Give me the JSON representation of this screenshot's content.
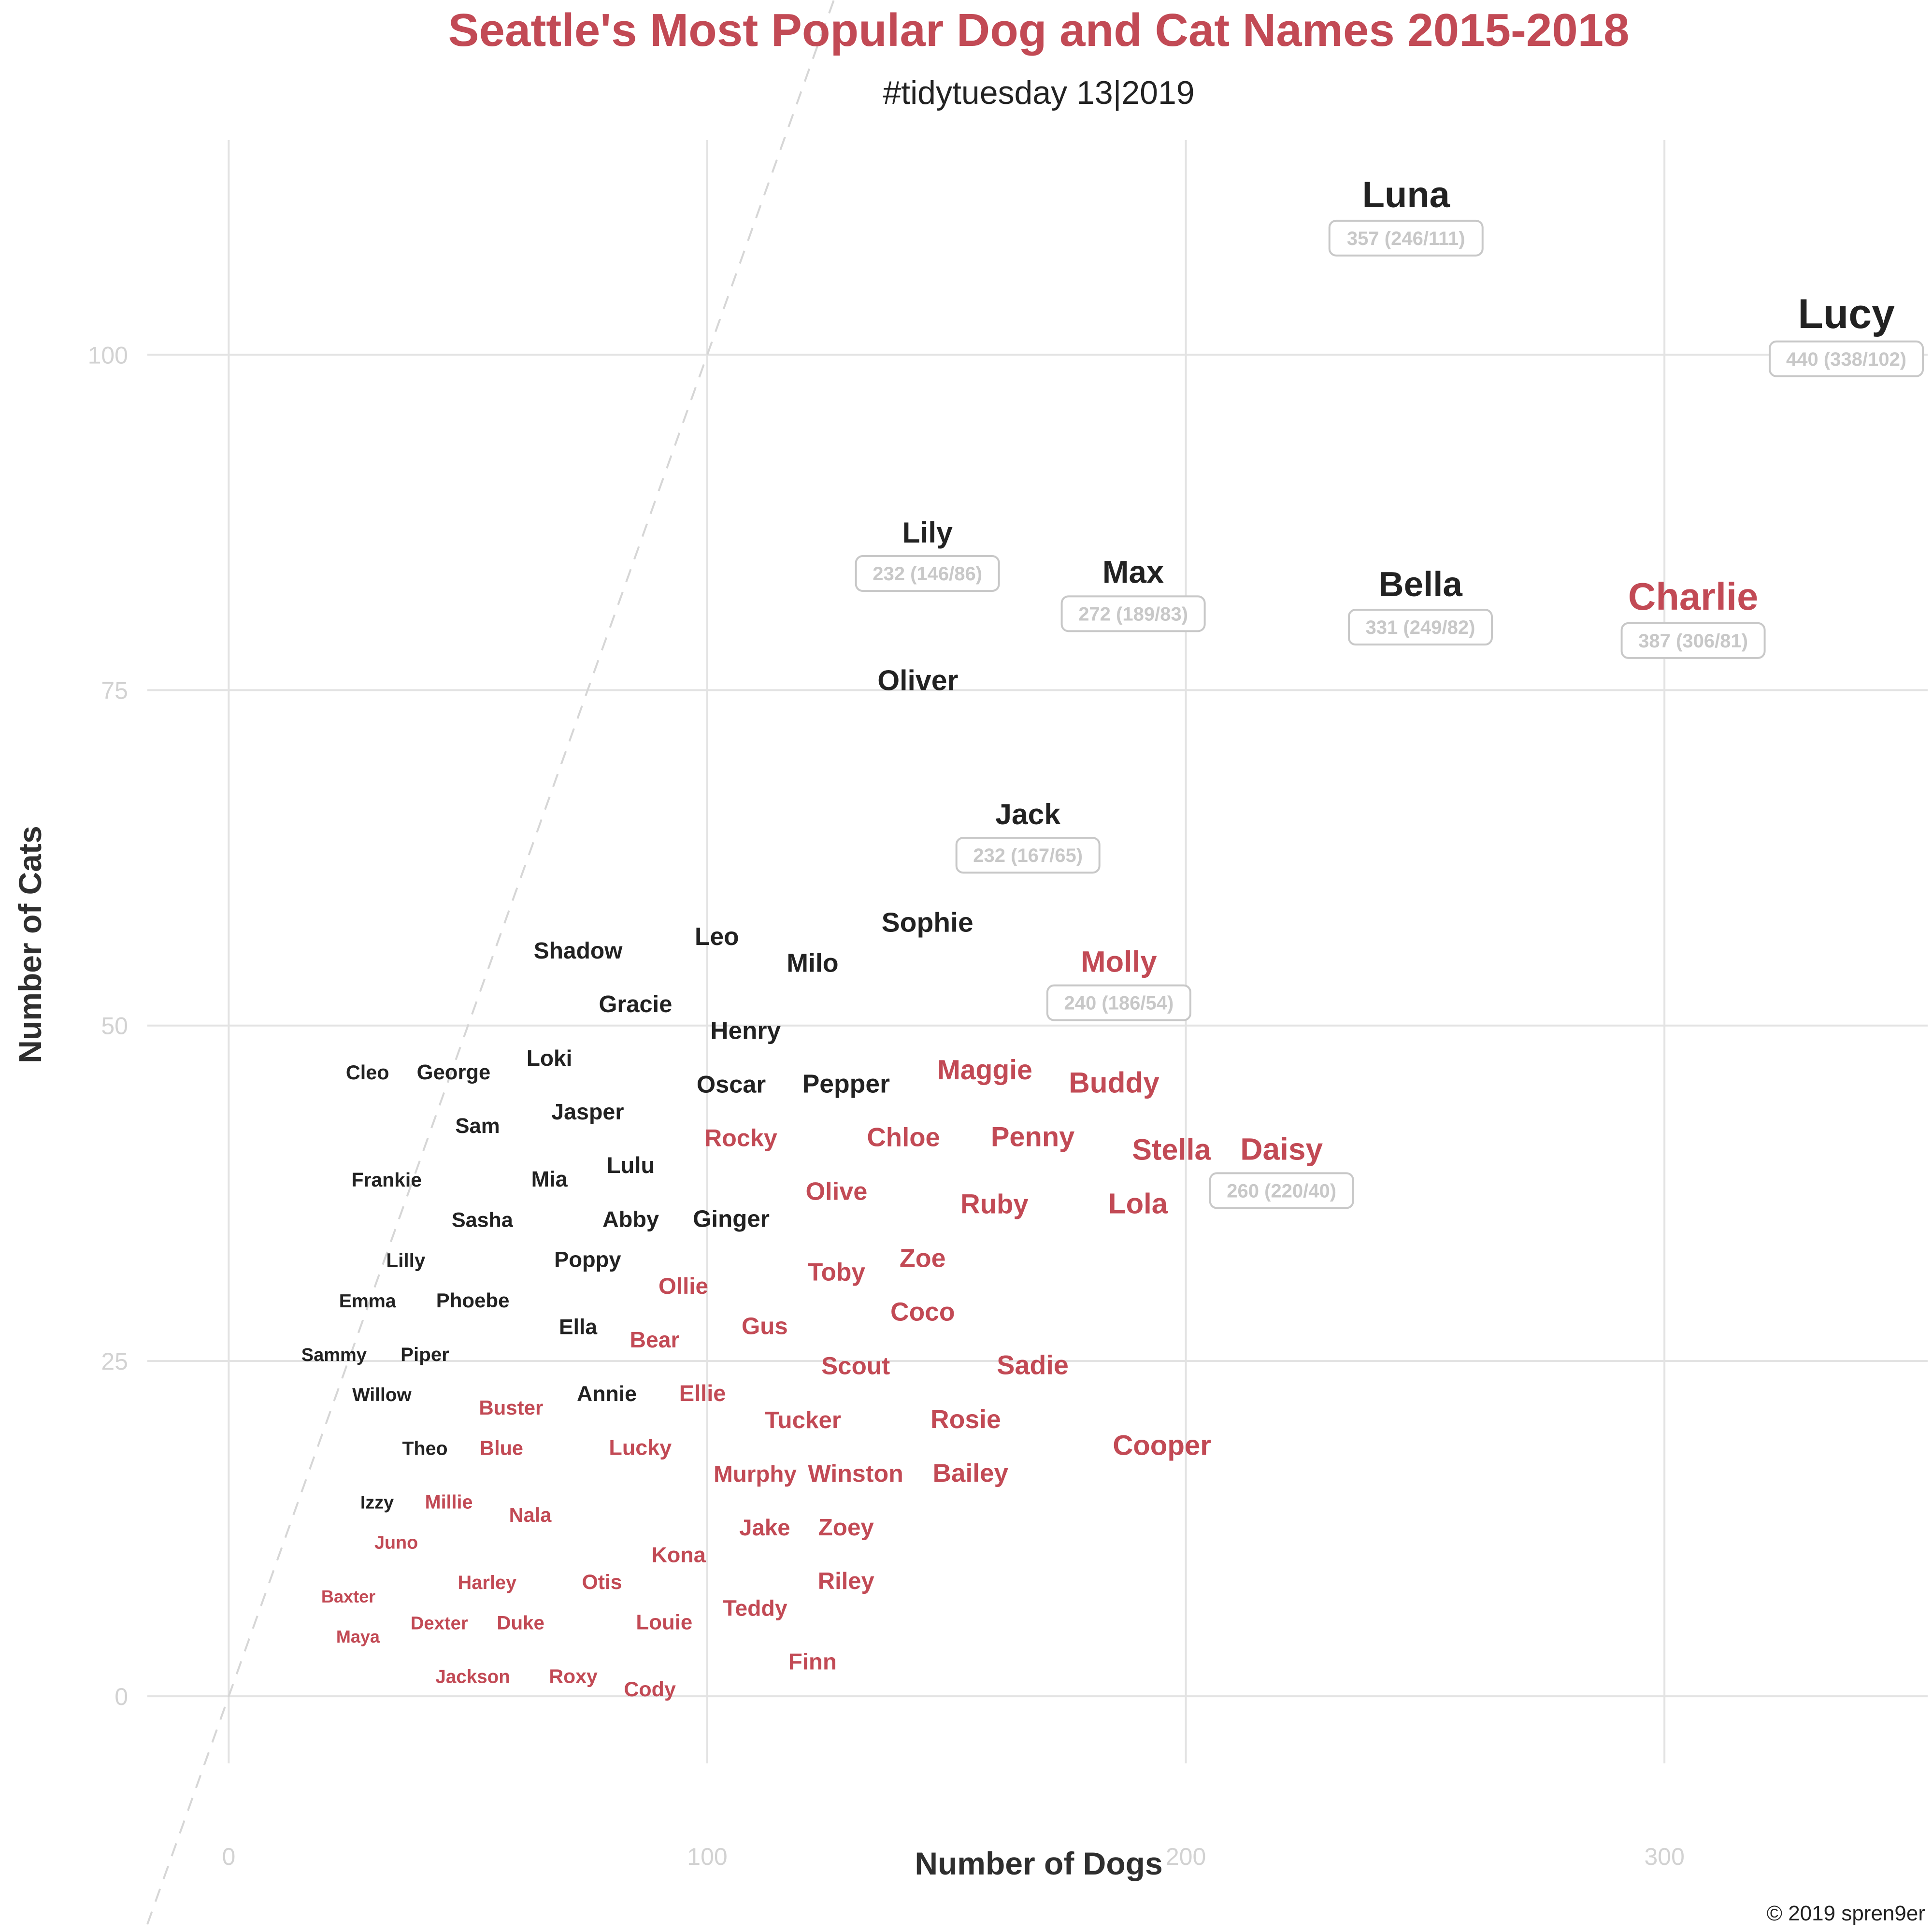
{
  "chart_data": {
    "type": "scatter",
    "title": "Seattle's Most Popular Dog and Cat Names 2015-2018",
    "subtitle": "#tidytuesday 13|2019",
    "xlabel": "Number of Dogs",
    "ylabel": "Number of Cats",
    "xlim": [
      -17,
      355
    ],
    "ylim": [
      -5,
      116
    ],
    "x_ticks": [
      0,
      100,
      200,
      300
    ],
    "y_ticks": [
      0,
      25,
      50,
      75,
      100
    ],
    "grid": true,
    "reference_line": "y = x (dashed)",
    "caption": "© 2019 spren9er",
    "colors": {
      "more_cats": "#222222",
      "more_dogs": "#c24a55",
      "grid": "#e3e3e3",
      "badge": "#c8c8c8"
    },
    "points": [
      {
        "name": "Lucy",
        "x": 338,
        "y": 102,
        "label": "440 (338/102)",
        "color": "dark"
      },
      {
        "name": "Luna",
        "x": 246,
        "y": 111,
        "label": "357 (246/111)",
        "color": "dark"
      },
      {
        "name": "Charlie",
        "x": 306,
        "y": 81,
        "label": "387 (306/81)",
        "color": "red"
      },
      {
        "name": "Bella",
        "x": 249,
        "y": 82,
        "label": "331 (249/82)",
        "color": "dark"
      },
      {
        "name": "Max",
        "x": 189,
        "y": 83,
        "label": "272 (189/83)",
        "color": "dark"
      },
      {
        "name": "Lily",
        "x": 146,
        "y": 86,
        "label": "232 (146/86)",
        "color": "dark"
      },
      {
        "name": "Jack",
        "x": 167,
        "y": 65,
        "label": "232 (167/65)",
        "color": "dark"
      },
      {
        "name": "Molly",
        "x": 186,
        "y": 54,
        "label": "240 (186/54)",
        "color": "red"
      },
      {
        "name": "Daisy",
        "x": 220,
        "y": 40,
        "label": "260 (220/40)",
        "color": "red"
      },
      {
        "name": "Oliver",
        "x": 144,
        "y": 75,
        "color": "dark"
      },
      {
        "name": "Sophie",
        "x": 146,
        "y": 57,
        "color": "dark"
      },
      {
        "name": "Leo",
        "x": 102,
        "y": 56,
        "color": "dark"
      },
      {
        "name": "Milo",
        "x": 122,
        "y": 54,
        "color": "dark"
      },
      {
        "name": "Shadow",
        "x": 73,
        "y": 55,
        "color": "dark"
      },
      {
        "name": "Gracie",
        "x": 85,
        "y": 51,
        "color": "dark"
      },
      {
        "name": "Henry",
        "x": 108,
        "y": 49,
        "color": "dark"
      },
      {
        "name": "Loki",
        "x": 67,
        "y": 47,
        "color": "dark"
      },
      {
        "name": "George",
        "x": 47,
        "y": 46,
        "color": "dark"
      },
      {
        "name": "Cleo",
        "x": 29,
        "y": 46,
        "color": "dark"
      },
      {
        "name": "Oscar",
        "x": 105,
        "y": 45,
        "color": "dark"
      },
      {
        "name": "Pepper",
        "x": 129,
        "y": 45,
        "color": "dark"
      },
      {
        "name": "Jasper",
        "x": 75,
        "y": 43,
        "color": "dark"
      },
      {
        "name": "Sam",
        "x": 52,
        "y": 42,
        "color": "dark"
      },
      {
        "name": "Lulu",
        "x": 84,
        "y": 39,
        "color": "dark"
      },
      {
        "name": "Mia",
        "x": 67,
        "y": 38,
        "color": "dark"
      },
      {
        "name": "Frankie",
        "x": 33,
        "y": 38,
        "color": "dark"
      },
      {
        "name": "Sasha",
        "x": 53,
        "y": 35,
        "color": "dark"
      },
      {
        "name": "Abby",
        "x": 84,
        "y": 35,
        "color": "dark"
      },
      {
        "name": "Ginger",
        "x": 105,
        "y": 35,
        "color": "dark"
      },
      {
        "name": "Lilly",
        "x": 37,
        "y": 32,
        "color": "dark"
      },
      {
        "name": "Poppy",
        "x": 75,
        "y": 32,
        "color": "dark"
      },
      {
        "name": "Emma",
        "x": 29,
        "y": 29,
        "color": "dark"
      },
      {
        "name": "Phoebe",
        "x": 51,
        "y": 29,
        "color": "dark"
      },
      {
        "name": "Ella",
        "x": 73,
        "y": 27,
        "color": "dark"
      },
      {
        "name": "Sammy",
        "x": 22,
        "y": 25,
        "color": "dark"
      },
      {
        "name": "Piper",
        "x": 41,
        "y": 25,
        "color": "dark"
      },
      {
        "name": "Willow",
        "x": 32,
        "y": 22,
        "color": "dark"
      },
      {
        "name": "Annie",
        "x": 79,
        "y": 22,
        "color": "dark"
      },
      {
        "name": "Theo",
        "x": 41,
        "y": 18,
        "color": "dark"
      },
      {
        "name": "Izzy",
        "x": 31,
        "y": 14,
        "color": "dark"
      },
      {
        "name": "Maggie",
        "x": 158,
        "y": 46,
        "color": "red"
      },
      {
        "name": "Buddy",
        "x": 185,
        "y": 45,
        "color": "red"
      },
      {
        "name": "Rocky",
        "x": 107,
        "y": 41,
        "color": "red"
      },
      {
        "name": "Chloe",
        "x": 141,
        "y": 41,
        "color": "red"
      },
      {
        "name": "Penny",
        "x": 168,
        "y": 41,
        "color": "red"
      },
      {
        "name": "Stella",
        "x": 197,
        "y": 40,
        "color": "red"
      },
      {
        "name": "Olive",
        "x": 127,
        "y": 37,
        "color": "red"
      },
      {
        "name": "Ruby",
        "x": 160,
        "y": 36,
        "color": "red"
      },
      {
        "name": "Lola",
        "x": 190,
        "y": 36,
        "color": "red"
      },
      {
        "name": "Zoe",
        "x": 145,
        "y": 32,
        "color": "red"
      },
      {
        "name": "Toby",
        "x": 127,
        "y": 31,
        "color": "red"
      },
      {
        "name": "Ollie",
        "x": 95,
        "y": 30,
        "color": "red"
      },
      {
        "name": "Coco",
        "x": 145,
        "y": 28,
        "color": "red"
      },
      {
        "name": "Gus",
        "x": 112,
        "y": 27,
        "color": "red"
      },
      {
        "name": "Bear",
        "x": 89,
        "y": 26,
        "color": "red"
      },
      {
        "name": "Sadie",
        "x": 168,
        "y": 24,
        "color": "red"
      },
      {
        "name": "Scout",
        "x": 131,
        "y": 24,
        "color": "red"
      },
      {
        "name": "Ellie",
        "x": 99,
        "y": 22,
        "color": "red"
      },
      {
        "name": "Buster",
        "x": 59,
        "y": 21,
        "color": "red"
      },
      {
        "name": "Rosie",
        "x": 154,
        "y": 20,
        "color": "red"
      },
      {
        "name": "Tucker",
        "x": 120,
        "y": 20,
        "color": "red"
      },
      {
        "name": "Cooper",
        "x": 195,
        "y": 18,
        "color": "red"
      },
      {
        "name": "Blue",
        "x": 57,
        "y": 18,
        "color": "red"
      },
      {
        "name": "Lucky",
        "x": 86,
        "y": 18,
        "color": "red"
      },
      {
        "name": "Murphy",
        "x": 110,
        "y": 16,
        "color": "red"
      },
      {
        "name": "Winston",
        "x": 131,
        "y": 16,
        "color": "red"
      },
      {
        "name": "Bailey",
        "x": 155,
        "y": 16,
        "color": "red"
      },
      {
        "name": "Millie",
        "x": 46,
        "y": 14,
        "color": "red"
      },
      {
        "name": "Nala",
        "x": 63,
        "y": 13,
        "color": "red"
      },
      {
        "name": "Jake",
        "x": 112,
        "y": 12,
        "color": "red"
      },
      {
        "name": "Zoey",
        "x": 129,
        "y": 12,
        "color": "red"
      },
      {
        "name": "Juno",
        "x": 35,
        "y": 11,
        "color": "red"
      },
      {
        "name": "Kona",
        "x": 94,
        "y": 10,
        "color": "red"
      },
      {
        "name": "Harley",
        "x": 54,
        "y": 8,
        "color": "red"
      },
      {
        "name": "Otis",
        "x": 78,
        "y": 8,
        "color": "red"
      },
      {
        "name": "Riley",
        "x": 129,
        "y": 8,
        "color": "red"
      },
      {
        "name": "Baxter",
        "x": 25,
        "y": 7,
        "color": "red"
      },
      {
        "name": "Teddy",
        "x": 110,
        "y": 6,
        "color": "red"
      },
      {
        "name": "Dexter",
        "x": 44,
        "y": 5,
        "color": "red"
      },
      {
        "name": "Duke",
        "x": 61,
        "y": 5,
        "color": "red"
      },
      {
        "name": "Louie",
        "x": 91,
        "y": 5,
        "color": "red"
      },
      {
        "name": "Maya",
        "x": 27,
        "y": 4,
        "color": "red"
      },
      {
        "name": "Finn",
        "x": 122,
        "y": 2,
        "color": "red"
      },
      {
        "name": "Jackson",
        "x": 51,
        "y": 1,
        "color": "red"
      },
      {
        "name": "Roxy",
        "x": 72,
        "y": 1,
        "color": "red"
      },
      {
        "name": "Cody",
        "x": 88,
        "y": 0,
        "color": "red"
      }
    ]
  }
}
